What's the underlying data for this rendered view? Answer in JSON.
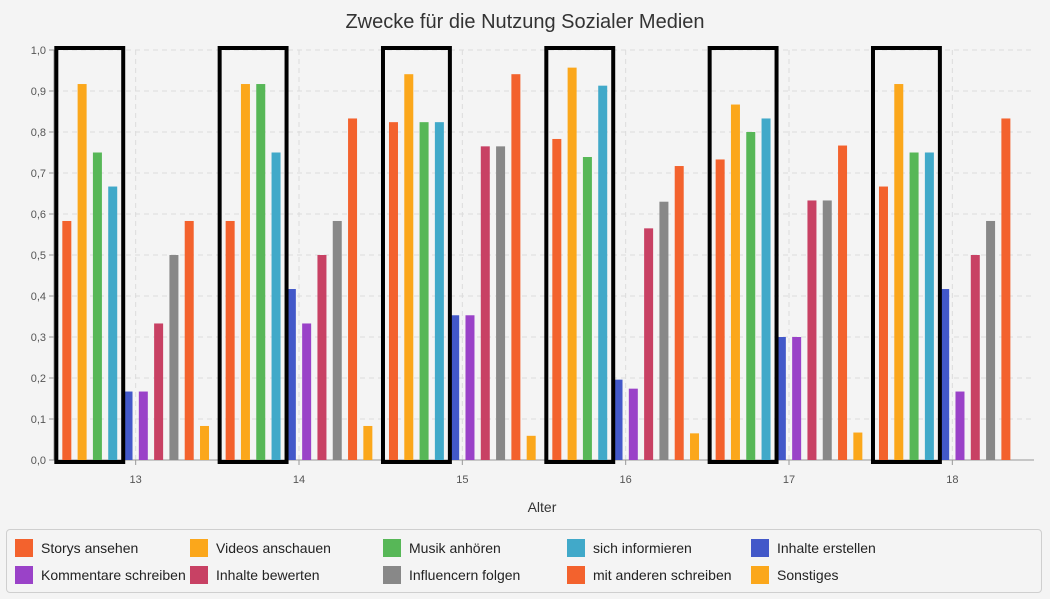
{
  "chart_data": {
    "type": "bar",
    "title": "Zwecke für die Nutzung Sozialer Medien",
    "xlabel": "Alter",
    "ylabel": "",
    "ylim": [
      0,
      1
    ],
    "yticks": [
      "0,0",
      "0,1",
      "0,2",
      "0,3",
      "0,4",
      "0,5",
      "0,6",
      "0,7",
      "0,8",
      "0,9",
      "1,0"
    ],
    "categories": [
      "13",
      "14",
      "15",
      "16",
      "17",
      "18"
    ],
    "grid": true,
    "legend_position": "bottom",
    "highlight": "black outline boxes around the first four series (Storys ansehen … sich informieren) in each age group",
    "series": [
      {
        "name": "Storys ansehen",
        "color": "#f3622d",
        "values": [
          0.583,
          0.583,
          0.824,
          0.783,
          0.733,
          0.667
        ]
      },
      {
        "name": "Videos anschauen",
        "color": "#fba71b",
        "values": [
          0.917,
          0.917,
          0.941,
          0.957,
          0.867,
          0.917
        ]
      },
      {
        "name": "Musik anhören",
        "color": "#57b757",
        "values": [
          0.75,
          0.917,
          0.824,
          0.739,
          0.8,
          0.75
        ]
      },
      {
        "name": "sich informieren",
        "color": "#41a9c9",
        "values": [
          0.667,
          0.75,
          0.824,
          0.913,
          0.833,
          0.75
        ]
      },
      {
        "name": "Inhalte erstellen",
        "color": "#4258c9",
        "values": [
          0.167,
          0.417,
          0.353,
          0.196,
          0.3,
          0.417
        ]
      },
      {
        "name": "Kommentare schreiben",
        "color": "#9a42c8",
        "values": [
          0.167,
          0.333,
          0.353,
          0.174,
          0.3,
          0.167
        ]
      },
      {
        "name": "Inhalte bewerten",
        "color": "#c84164",
        "values": [
          0.333,
          0.5,
          0.765,
          0.565,
          0.633,
          0.5
        ]
      },
      {
        "name": "Influencern folgen",
        "color": "#888888",
        "values": [
          0.5,
          0.583,
          0.765,
          0.63,
          0.633,
          0.583
        ]
      },
      {
        "name": "mit anderen schreiben",
        "color": "#f3622d",
        "values": [
          0.583,
          0.833,
          0.941,
          0.717,
          0.767,
          0.833
        ]
      },
      {
        "name": "Sonstiges",
        "color": "#fba71b",
        "values": [
          0.083,
          0.083,
          0.059,
          0.065,
          0.067,
          0
        ]
      }
    ]
  }
}
